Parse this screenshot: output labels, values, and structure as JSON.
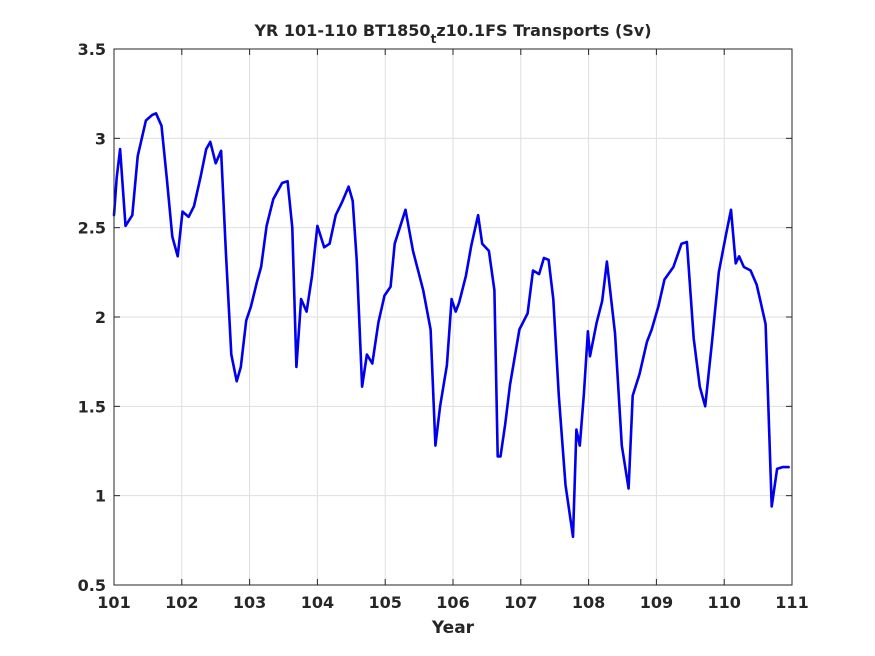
{
  "chart_data": {
    "type": "line",
    "title": {
      "prefix": "YR 101-110 BT1850",
      "subscript": "t",
      "suffix": "z10.1FS Transports (Sv)"
    },
    "xlabel": "Year",
    "ylabel": "",
    "xlim": [
      101,
      111
    ],
    "ylim": [
      0.5,
      3.5
    ],
    "xticks": [
      101,
      102,
      103,
      104,
      105,
      106,
      107,
      108,
      109,
      110,
      111
    ],
    "yticks": [
      0.5,
      1,
      1.5,
      2,
      2.5,
      3,
      3.5
    ],
    "ytick_labels": [
      "0.5",
      "1",
      "1.5",
      "2",
      "2.5",
      "3",
      "3.5"
    ],
    "grid": true,
    "legend": "none",
    "series": [
      {
        "color": "#0000ee",
        "x": [
          101.0,
          101.04,
          101.09,
          101.17,
          101.27,
          101.35,
          101.47,
          101.56,
          101.62,
          101.7,
          101.78,
          101.86,
          101.94,
          102.01,
          102.1,
          102.18,
          102.28,
          102.36,
          102.42,
          102.5,
          102.58,
          102.65,
          102.73,
          102.81,
          102.87,
          102.95,
          103.02,
          103.11,
          103.17,
          103.25,
          103.35,
          103.48,
          103.56,
          103.63,
          103.69,
          103.76,
          103.84,
          103.92,
          104.0,
          104.1,
          104.18,
          104.27,
          104.36,
          104.46,
          104.52,
          104.58,
          104.66,
          104.73,
          104.81,
          104.9,
          104.99,
          105.08,
          105.14,
          105.3,
          105.41,
          105.56,
          105.67,
          105.74,
          105.81,
          105.91,
          105.98,
          106.04,
          106.09,
          106.19,
          106.27,
          106.37,
          106.43,
          106.53,
          106.61,
          106.66,
          106.7,
          106.77,
          106.84,
          106.98,
          107.1,
          107.18,
          107.27,
          107.34,
          107.41,
          107.48,
          107.56,
          107.66,
          107.77,
          107.82,
          107.87,
          107.93,
          107.99,
          108.02,
          108.12,
          108.2,
          108.27,
          108.39,
          108.49,
          108.59,
          108.65,
          108.75,
          108.86,
          108.93,
          109.03,
          109.12,
          109.25,
          109.37,
          109.45,
          109.55,
          109.64,
          109.72,
          109.82,
          109.92,
          110.02,
          110.1,
          110.17,
          110.22,
          110.29,
          110.39,
          110.48,
          110.54,
          110.61,
          110.7,
          110.78,
          110.86,
          110.95
        ],
        "y": [
          2.57,
          2.78,
          2.94,
          2.51,
          2.57,
          2.9,
          3.1,
          3.13,
          3.14,
          3.07,
          2.77,
          2.45,
          2.34,
          2.59,
          2.56,
          2.62,
          2.79,
          2.94,
          2.98,
          2.86,
          2.93,
          2.36,
          1.79,
          1.64,
          1.72,
          1.98,
          2.06,
          2.2,
          2.28,
          2.51,
          2.66,
          2.75,
          2.76,
          2.5,
          1.72,
          2.1,
          2.03,
          2.23,
          2.51,
          2.39,
          2.41,
          2.57,
          2.64,
          2.73,
          2.65,
          2.32,
          1.61,
          1.79,
          1.74,
          1.97,
          2.12,
          2.17,
          2.41,
          2.6,
          2.37,
          2.15,
          1.93,
          1.28,
          1.5,
          1.73,
          2.1,
          2.03,
          2.08,
          2.23,
          2.4,
          2.57,
          2.41,
          2.37,
          2.15,
          1.22,
          1.22,
          1.4,
          1.62,
          1.93,
          2.02,
          2.26,
          2.24,
          2.33,
          2.32,
          2.1,
          1.56,
          1.06,
          0.77,
          1.37,
          1.28,
          1.57,
          1.92,
          1.78,
          1.97,
          2.09,
          2.31,
          1.91,
          1.28,
          1.04,
          1.56,
          1.68,
          1.86,
          1.93,
          2.06,
          2.21,
          2.28,
          2.41,
          2.42,
          1.88,
          1.61,
          1.5,
          1.86,
          2.25,
          2.45,
          2.6,
          2.3,
          2.34,
          2.28,
          2.26,
          2.18,
          2.08,
          1.96,
          0.94,
          1.15,
          1.16,
          1.16
        ]
      }
    ]
  }
}
